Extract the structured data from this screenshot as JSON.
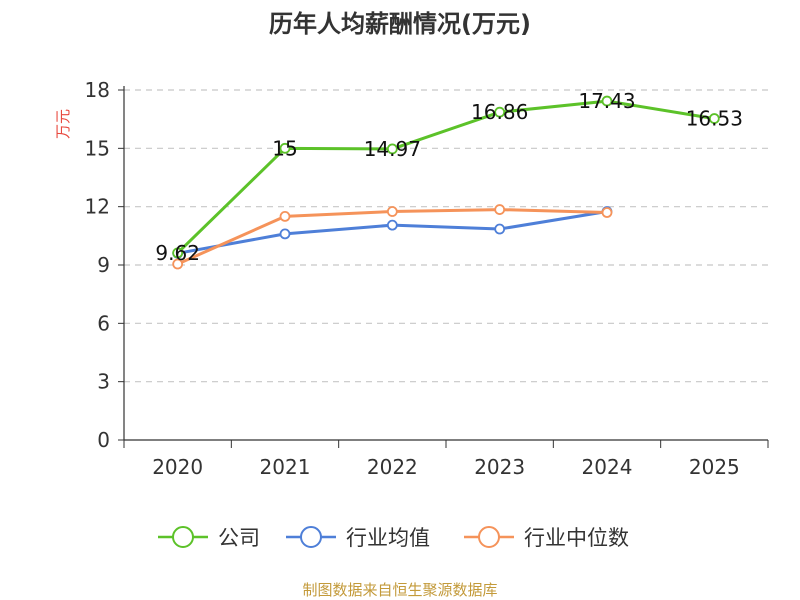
{
  "chart_data": {
    "type": "line",
    "title": "历年人均薪酬情况(万元)",
    "ylabel": "万元",
    "xlabel": "",
    "categories": [
      "2020",
      "2021",
      "2022",
      "2023",
      "2024",
      "2025"
    ],
    "y_ticks": [
      "0",
      "3",
      "6",
      "9",
      "12",
      "15",
      "18"
    ],
    "ylim": [
      0,
      18
    ],
    "grid": true,
    "legend_position": "bottom",
    "series": [
      {
        "name": "公司",
        "color": "#5cc229",
        "values": [
          9.62,
          15,
          14.97,
          16.86,
          17.43,
          16.53
        ],
        "labels": [
          "9.62",
          "15",
          "14.97",
          "16.86",
          "17.43",
          "16.53"
        ]
      },
      {
        "name": "行业均值",
        "color": "#4e7fd8",
        "values": [
          9.6,
          10.6,
          11.05,
          10.85,
          11.75,
          null
        ]
      },
      {
        "name": "行业中位数",
        "color": "#f5935a",
        "values": [
          9.05,
          11.5,
          11.75,
          11.85,
          11.7,
          null
        ]
      }
    ]
  },
  "footer": {
    "source": "制图数据来自恒生聚源数据库"
  }
}
